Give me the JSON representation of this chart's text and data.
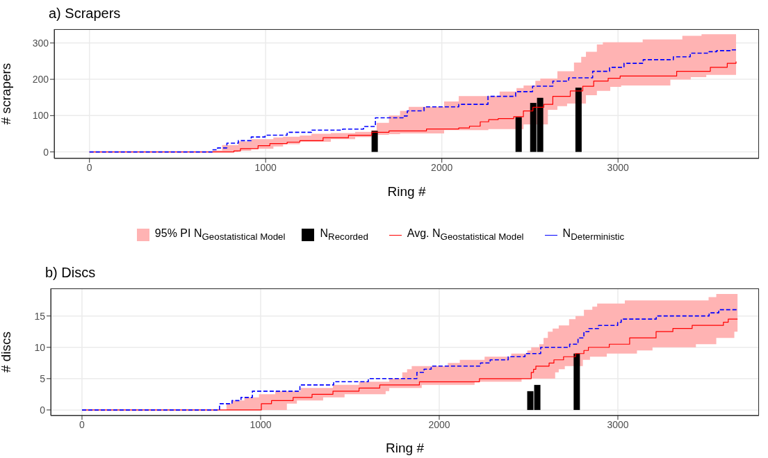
{
  "chart_data": [
    {
      "type": "step",
      "title": "a) Scrapers",
      "xlabel": "Ring #",
      "ylabel": "# scrapers",
      "xlim": [
        -200,
        3800
      ],
      "ylim": [
        -18,
        338
      ],
      "xticks": [
        0,
        1000,
        2000,
        3000
      ],
      "yticks": [
        0,
        100,
        200,
        300
      ],
      "grid": true,
      "legend": "bottom",
      "series": [
        {
          "name": "95% PI N$_{Geostatistical Model}$",
          "type": "area",
          "color": "#ffb3b3",
          "values": [
            null,
            null,
            null,
            null,
            null,
            null,
            null,
            null,
            null,
            null,
            null,
            null,
            null,
            null,
            null,
            null,
            null,
            null,
            null,
            null,
            null,
            null,
            null,
            null,
            null,
            null,
            null,
            null,
            null,
            null,
            null,
            null,
            null,
            null,
            null,
            null,
            null,
            null,
            null,
            null
          ],
          "x": [
            700,
            753,
            845,
            918,
            1044,
            1099,
            1194,
            1260,
            1370,
            1508,
            1600,
            1630,
            1700,
            1763,
            1812,
            2013,
            2096,
            2264,
            2328,
            2424,
            2464,
            2531,
            2559,
            2602,
            2656,
            2711,
            2750,
            2791,
            2818,
            2880,
            2914,
            2956,
            3018,
            3140,
            3297,
            3365,
            3413,
            3474,
            3501,
            3670
          ],
          "lower": [
            0,
            0,
            3,
            9,
            15,
            21,
            28,
            28,
            35,
            41,
            47,
            47,
            49,
            51,
            51,
            60,
            60,
            63,
            63,
            63,
            76,
            76,
            76,
            116,
            126,
            133,
            133,
            133,
            156,
            168,
            168,
            179,
            183,
            183,
            199,
            199,
            206,
            206,
            212,
            212
          ],
          "upper": [
            4,
            19,
            29,
            35,
            40,
            42,
            45,
            50,
            52,
            55,
            60,
            80,
            100,
            113,
            124,
            139,
            154,
            154,
            166,
            176,
            183,
            196,
            202,
            202,
            222,
            222,
            246,
            262,
            276,
            296,
            302,
            302,
            302,
            310,
            310,
            320,
            320,
            324,
            324,
            324
          ]
        },
        {
          "name": "N$_{Recorded}$",
          "type": "bar",
          "color": "#000000",
          "x": [
            1619,
            2436,
            2519,
            2558,
            2776
          ],
          "values": [
            58,
            96,
            135,
            149,
            177
          ]
        },
        {
          "name": "Avg. N$_{Geostatistical Model}$",
          "color": "#ff0000",
          "x": [
            0,
            820,
            857,
            957,
            1024,
            1122,
            1194,
            1326,
            1470,
            1602,
            1700,
            1913,
            2096,
            2157,
            2218,
            2266,
            2320,
            2408,
            2463,
            2517,
            2579,
            2630,
            2729,
            2800,
            2862,
            2944,
            3012,
            3333,
            3524,
            3620,
            3670
          ],
          "values": [
            0,
            3,
            9,
            17,
            23,
            27,
            31,
            39,
            46,
            54,
            58,
            63,
            66,
            71,
            83,
            89,
            92,
            97,
            113,
            123,
            131,
            153,
            168,
            181,
            195,
            203,
            209,
            222,
            233,
            244,
            249
          ]
        },
        {
          "name": "N$_{Deterministic}$",
          "color": "#0000ff",
          "line_style": "dashed",
          "x": [
            0,
            701,
            727,
            780,
            845,
            918,
            997,
            1122,
            1260,
            1437,
            1556,
            1623,
            1780,
            1804,
            1899,
            2096,
            2262,
            2419,
            2515,
            2630,
            2720,
            2856,
            2952,
            3034,
            3143,
            3314,
            3410,
            3517,
            3560,
            3640,
            3670
          ],
          "values": [
            0,
            6,
            11,
            24,
            31,
            41,
            46,
            54,
            60,
            63,
            70,
            94,
            99,
            113,
            124,
            131,
            153,
            166,
            181,
            195,
            204,
            222,
            233,
            244,
            254,
            262,
            272,
            276,
            279,
            281,
            281
          ]
        }
      ]
    },
    {
      "type": "step",
      "title": "b) Discs",
      "xlabel": "Ring #",
      "ylabel": "# discs",
      "xlim": [
        -175,
        3790
      ],
      "ylim": [
        -0.9,
        19.4
      ],
      "xticks": [
        0,
        1000,
        2000,
        3000
      ],
      "yticks": [
        0,
        5,
        10,
        15
      ],
      "grid": true,
      "series": [
        {
          "type": "area",
          "color": "#ffb3b3",
          "values": [
            null,
            null,
            null,
            null,
            null,
            null,
            null,
            null,
            null,
            null,
            null,
            null,
            null,
            null,
            null,
            null,
            null,
            null,
            null,
            null,
            null,
            null,
            null,
            null,
            null,
            null,
            null,
            null,
            null,
            null,
            null,
            null,
            null,
            null,
            null,
            null,
            null,
            null,
            null,
            null,
            null,
            null,
            null,
            null,
            null,
            null,
            null,
            null,
            null
          ],
          "x": [
            809,
            840,
            909,
            991,
            1082,
            1147,
            1203,
            1225,
            1350,
            1405,
            1470,
            1551,
            1700,
            1720,
            1793,
            1820,
            1846,
            1902,
            2048,
            2115,
            2198,
            2254,
            2403,
            2461,
            2493,
            2515,
            2560,
            2584,
            2608,
            2635,
            2649,
            2669,
            2703,
            2727,
            2763,
            2804,
            2810,
            2844,
            2857,
            2884,
            2938,
            3039,
            3107,
            3194,
            3437,
            3508,
            3551,
            3652,
            3670
          ],
          "lower": [
            0,
            0,
            0,
            0,
            0,
            1,
            1.5,
            1.5,
            2,
            2,
            2.5,
            2.5,
            3,
            3.5,
            3.5,
            3.5,
            3.5,
            4,
            4,
            4,
            4.5,
            4.5,
            4.5,
            5,
            5,
            5,
            5,
            5,
            5,
            5,
            6,
            6.5,
            7,
            7,
            7,
            8,
            8,
            8.5,
            8.5,
            8.5,
            9,
            9,
            9.5,
            10,
            10.5,
            10.5,
            11.5,
            12.5,
            12.5
          ],
          "upper": [
            1,
            1.5,
            2,
            2.5,
            3,
            3,
            3,
            3.5,
            3.5,
            4,
            4,
            4.5,
            4.5,
            5,
            6,
            6.5,
            7,
            7,
            7.5,
            8,
            8,
            8.5,
            9,
            9,
            9.5,
            10,
            10.5,
            11.5,
            12.5,
            13,
            13,
            13.5,
            13.5,
            14.5,
            15,
            15,
            16,
            16,
            16.5,
            17,
            17,
            17.5,
            17.5,
            17.5,
            17.5,
            18,
            18.5,
            18.5,
            18.5
          ]
        },
        {
          "type": "bar",
          "color": "#000000",
          "x": [
            2510,
            2549,
            2770
          ],
          "values": [
            3,
            4,
            9
          ]
        },
        {
          "color": "#ff0000",
          "x": [
            0,
            1004,
            1061,
            1182,
            1288,
            1405,
            1551,
            1667,
            1889,
            2225,
            2515,
            2528,
            2541,
            2615,
            2642,
            2696,
            2763,
            2810,
            2835,
            2952,
            3066,
            3214,
            3308,
            3416,
            3591,
            3618,
            3670
          ],
          "values": [
            0,
            1,
            1.5,
            2,
            2.5,
            3,
            3.5,
            4,
            4.5,
            5,
            6,
            6.5,
            7,
            7.5,
            8,
            8.5,
            9,
            9.5,
            10,
            10.5,
            11.5,
            12.5,
            13,
            13.5,
            14,
            14.5,
            14.5
          ]
        },
        {
          "color": "#0000ff",
          "line_style": "dashed",
          "x": [
            0,
            770,
            840,
            890,
            954,
            1220,
            1409,
            1603,
            1875,
            1915,
            1955,
            2231,
            2285,
            2386,
            2480,
            2568,
            2730,
            2777,
            2810,
            2838,
            2892,
            2999,
            3019,
            3215,
            3511,
            3565,
            3670
          ],
          "values": [
            0,
            1,
            1.5,
            2,
            3,
            4,
            4.5,
            5,
            6,
            6.5,
            7,
            7.5,
            8,
            8.5,
            9,
            10,
            10.5,
            11.5,
            12.5,
            13,
            13.5,
            14,
            14.5,
            15,
            15.5,
            16,
            16
          ]
        }
      ]
    }
  ]
}
